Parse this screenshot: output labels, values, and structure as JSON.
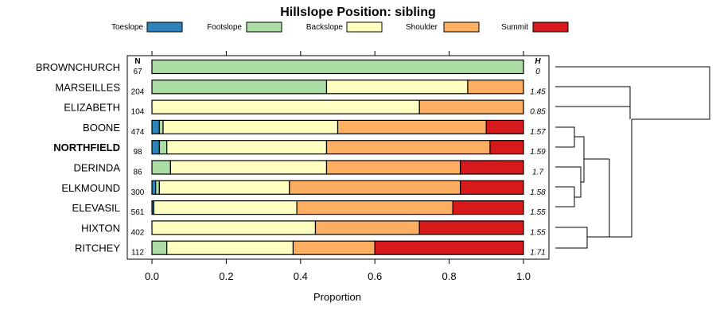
{
  "chart_data": {
    "type": "bar",
    "orientation": "horizontal",
    "stacked": true,
    "title": "Hillslope Position: sibling",
    "xlabel": "Proportion",
    "xlim": [
      0,
      1
    ],
    "xticks": [
      "0.0",
      "0.2",
      "0.4",
      "0.6",
      "0.8",
      "1.0"
    ],
    "n_header": "N",
    "h_header": "H",
    "legend_position": "top",
    "series": [
      {
        "name": "Toeslope",
        "color": "#2b83ba"
      },
      {
        "name": "Footslope",
        "color": "#abdda4"
      },
      {
        "name": "Backslope",
        "color": "#ffffbf"
      },
      {
        "name": "Shoulder",
        "color": "#fdae61"
      },
      {
        "name": "Summit",
        "color": "#d7191c"
      }
    ],
    "rows": [
      {
        "label": "BROWNCHURCH",
        "bold": false,
        "n": "67",
        "h": "0",
        "values": [
          0.0,
          1.0,
          0.0,
          0.0,
          0.0
        ]
      },
      {
        "label": "MARSEILLES",
        "bold": false,
        "n": "204",
        "h": "1.45",
        "values": [
          0.0,
          0.47,
          0.38,
          0.15,
          0.0
        ]
      },
      {
        "label": "ELIZABETH",
        "bold": false,
        "n": "104",
        "h": "0.85",
        "values": [
          0.0,
          0.0,
          0.72,
          0.28,
          0.0
        ]
      },
      {
        "label": "BOONE",
        "bold": false,
        "n": "474",
        "h": "1.57",
        "values": [
          0.02,
          0.01,
          0.47,
          0.4,
          0.1
        ]
      },
      {
        "label": "NORTHFIELD",
        "bold": true,
        "n": "98",
        "h": "1.59",
        "values": [
          0.02,
          0.02,
          0.43,
          0.44,
          0.09
        ]
      },
      {
        "label": "DERINDA",
        "bold": false,
        "n": "86",
        "h": "1.7",
        "values": [
          0.0,
          0.05,
          0.42,
          0.36,
          0.17
        ]
      },
      {
        "label": "ELKMOUND",
        "bold": false,
        "n": "300",
        "h": "1.58",
        "values": [
          0.01,
          0.01,
          0.35,
          0.46,
          0.17
        ]
      },
      {
        "label": "ELEVASIL",
        "bold": false,
        "n": "561",
        "h": "1.55",
        "values": [
          0.005,
          0.0,
          0.385,
          0.42,
          0.19
        ]
      },
      {
        "label": "HIXTON",
        "bold": false,
        "n": "402",
        "h": "1.55",
        "values": [
          0.0,
          0.0,
          0.44,
          0.28,
          0.28
        ]
      },
      {
        "label": "RITCHEY",
        "bold": false,
        "n": "112",
        "h": "1.71",
        "values": [
          0.0,
          0.04,
          0.34,
          0.22,
          0.4
        ]
      }
    ]
  }
}
